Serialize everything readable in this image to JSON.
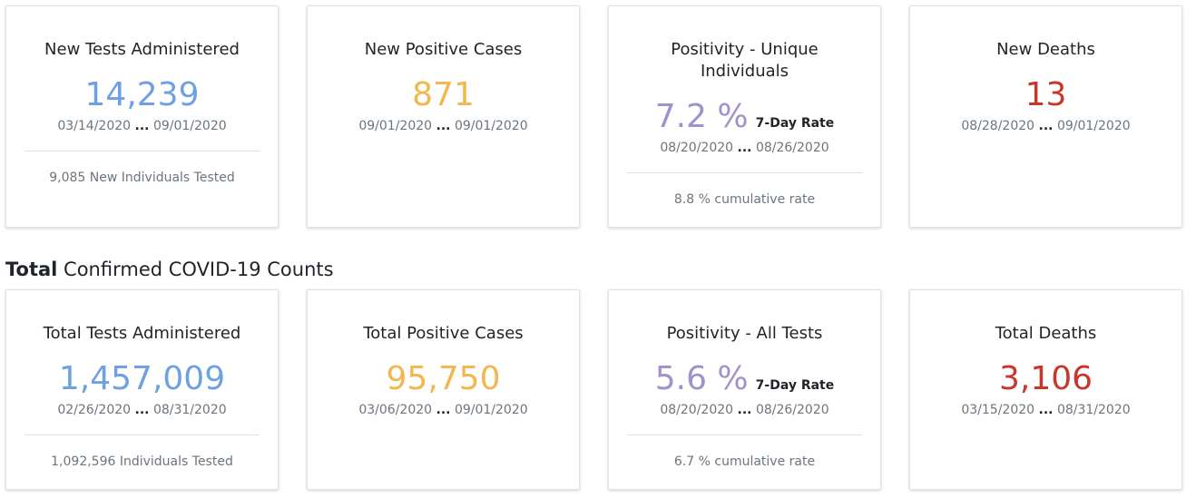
{
  "new": {
    "tests": {
      "title": "New Tests Administered",
      "value": "14,239",
      "date_start": "03/14/2020",
      "date_end": "09/01/2020",
      "footer": "9,085 New Individuals Tested"
    },
    "positive": {
      "title": "New Positive Cases",
      "value": "871",
      "date_start": "09/01/2020",
      "date_end": "09/01/2020"
    },
    "positivity": {
      "title_line1": "Positivity - Unique",
      "title_line2": "Individuals",
      "value": "7.2 %",
      "rate_label": "7-Day Rate",
      "date_start": "08/20/2020",
      "date_end": "08/26/2020",
      "footer": "8.8 % cumulative rate"
    },
    "deaths": {
      "title": "New Deaths",
      "value": "13",
      "date_start": "08/28/2020",
      "date_end": "09/01/2020"
    }
  },
  "section": {
    "bold": "Total",
    "rest": " Confirmed COVID-19 Counts"
  },
  "total": {
    "tests": {
      "title": "Total Tests Administered",
      "value": "1,457,009",
      "date_start": "02/26/2020",
      "date_end": "08/31/2020",
      "footer": "1,092,596 Individuals Tested"
    },
    "positive": {
      "title": "Total Positive Cases",
      "value": "95,750",
      "date_start": "03/06/2020",
      "date_end": "09/01/2020"
    },
    "positivity": {
      "title": "Positivity - All Tests",
      "value": "5.6 %",
      "rate_label": "7-Day Rate",
      "date_start": "08/20/2020",
      "date_end": "08/26/2020",
      "footer": "6.7 % cumulative rate"
    },
    "deaths": {
      "title": "Total Deaths",
      "value": "3,106",
      "date_start": "03/15/2020",
      "date_end": "08/31/2020"
    }
  },
  "date_separator": "...",
  "colors": {
    "tests": "#6ea1e3",
    "positive": "#f4b64f",
    "positivity": "#a191cc",
    "deaths": "#c7372b"
  }
}
